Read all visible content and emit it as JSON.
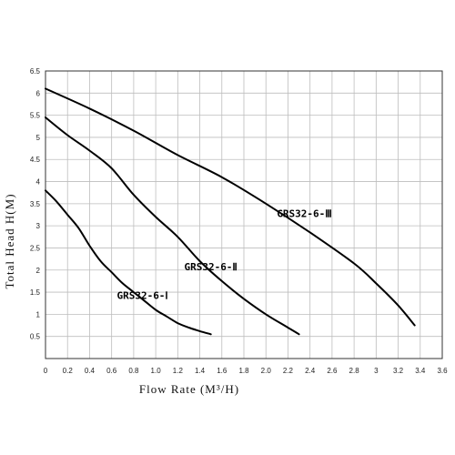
{
  "chart_data": {
    "type": "line",
    "title": "",
    "xlabel": "Flow Rate (M³/H)",
    "ylabel": "Total Head H(M)",
    "xlim": [
      0,
      3.6
    ],
    "ylim": [
      0,
      6.5
    ],
    "x_ticks": [
      "0",
      "0.2",
      "0.4",
      "0.6",
      "0.8",
      "1.0",
      "1.2",
      "1.4",
      "1.6",
      "1.8",
      "2.0",
      "2.2",
      "2.4",
      "2.6",
      "2.8",
      "3",
      "3.2",
      "3.4",
      "3.6"
    ],
    "y_ticks": [
      "0.5",
      "1",
      "1.5",
      "2",
      "2.5",
      "3",
      "3.5",
      "4",
      "4.5",
      "5",
      "5.5",
      "6",
      "6.5"
    ],
    "grid": true,
    "series": [
      {
        "name": "GRS32-6-Ⅰ",
        "x": [
          0,
          0.1,
          0.2,
          0.3,
          0.4,
          0.5,
          0.6,
          0.7,
          0.8,
          0.9,
          1.0,
          1.1,
          1.2,
          1.3,
          1.4,
          1.5
        ],
        "y": [
          3.8,
          3.55,
          3.25,
          2.95,
          2.55,
          2.2,
          1.95,
          1.7,
          1.5,
          1.3,
          1.1,
          0.95,
          0.8,
          0.7,
          0.62,
          0.55
        ]
      },
      {
        "name": "GRS32-6-Ⅱ",
        "x": [
          0,
          0.2,
          0.4,
          0.6,
          0.8,
          1.0,
          1.2,
          1.4,
          1.6,
          1.8,
          2.0,
          2.2,
          2.3
        ],
        "y": [
          5.45,
          5.05,
          4.7,
          4.3,
          3.7,
          3.2,
          2.75,
          2.2,
          1.75,
          1.35,
          1.0,
          0.7,
          0.55
        ]
      },
      {
        "name": "GRS32-6-Ⅲ",
        "x": [
          0,
          0.4,
          0.8,
          1.2,
          1.6,
          2.0,
          2.4,
          2.8,
          3.0,
          3.2,
          3.35
        ],
        "y": [
          6.1,
          5.65,
          5.15,
          4.6,
          4.1,
          3.5,
          2.85,
          2.15,
          1.7,
          1.2,
          0.75
        ]
      }
    ],
    "series_labels": [
      "GRS32-6-Ⅰ",
      "GRS32-6-Ⅱ",
      "GRS32-6-Ⅲ"
    ]
  }
}
